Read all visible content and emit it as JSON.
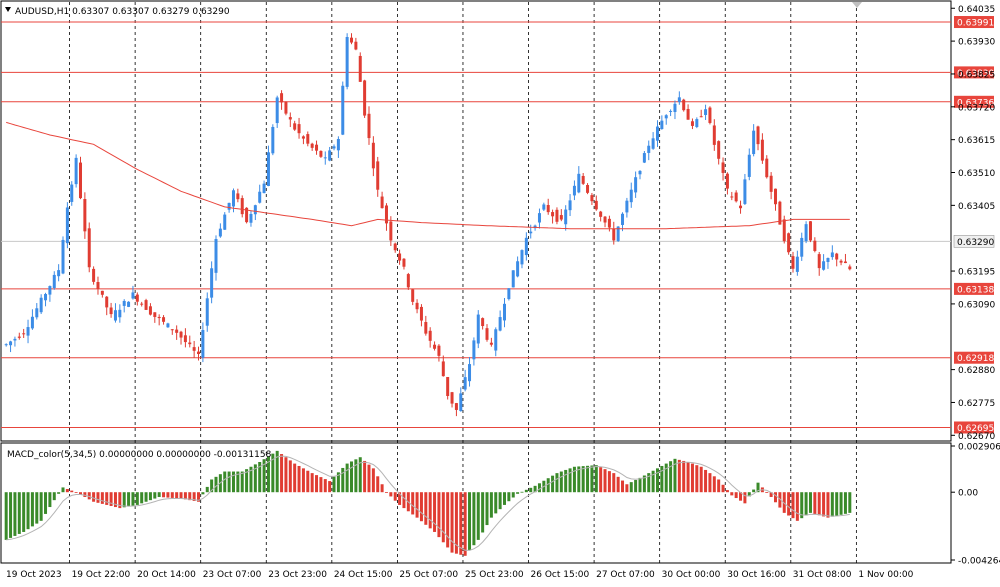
{
  "header": {
    "symbol_line": "AUDUSD,H1  0.63307 0.63307 0.63279 0.63290"
  },
  "macd_header": "MACD_color(5,34,5) 0.00000000 0.00000000 -0.00131158",
  "colors": {
    "bull": "#3c8ce6",
    "bear": "#e03c32",
    "ma": "#e8453c",
    "level": "#e8453c",
    "hist_up": "#3a8a2a",
    "hist_down": "#e03c32",
    "signal": "#b4b4b4"
  },
  "price_ticks": [
    "0.64035",
    "0.63930",
    "0.63825",
    "0.63720",
    "0.63615",
    "0.63510",
    "0.63405",
    "0.63195",
    "0.63090",
    "0.62880",
    "0.62775",
    "0.62670"
  ],
  "macd_ticks": [
    "0.0029061",
    "0.00",
    "-0.0042643"
  ],
  "time_labels": [
    "19 Oct 2023",
    "19 Oct 22:00",
    "20 Oct 14:00",
    "23 Oct 07:00",
    "23 Oct 23:00",
    "24 Oct 15:00",
    "25 Oct 07:00",
    "25 Oct 23:00",
    "26 Oct 15:00",
    "27 Oct 07:00",
    "30 Oct 00:00",
    "30 Oct 16:00",
    "31 Oct 08:00",
    "1 Nov 00:00"
  ],
  "current_price": "0.63290",
  "chart_data": {
    "type": "candlestick",
    "symbol": "AUDUSD",
    "timeframe": "H1",
    "price_range": [
      0.62655,
      0.64055
    ],
    "horizontal_levels": [
      "0.63991",
      "0.63830",
      "0.63736",
      "0.63138",
      "0.62918",
      "0.62695"
    ],
    "close_path": [
      [
        0,
        0.6296
      ],
      [
        4,
        0.63
      ],
      [
        8,
        0.631
      ],
      [
        12,
        0.632
      ],
      [
        14,
        0.634
      ],
      [
        16,
        0.6355
      ],
      [
        19,
        0.632
      ],
      [
        24,
        0.6305
      ],
      [
        29,
        0.6312
      ],
      [
        34,
        0.6305
      ],
      [
        39,
        0.63
      ],
      [
        44,
        0.6292
      ],
      [
        48,
        0.633
      ],
      [
        52,
        0.6345
      ],
      [
        55,
        0.6335
      ],
      [
        59,
        0.6348
      ],
      [
        62,
        0.6375
      ],
      [
        66,
        0.6365
      ],
      [
        69,
        0.636
      ],
      [
        73,
        0.6355
      ],
      [
        76,
        0.6362
      ],
      [
        78,
        0.6395
      ],
      [
        80,
        0.639
      ],
      [
        82,
        0.637
      ],
      [
        85,
        0.6345
      ],
      [
        88,
        0.633
      ],
      [
        91,
        0.632
      ],
      [
        93,
        0.631
      ],
      [
        96,
        0.63
      ],
      [
        99,
        0.6292
      ],
      [
        101,
        0.628
      ],
      [
        103,
        0.6275
      ],
      [
        106,
        0.629
      ],
      [
        108,
        0.6305
      ],
      [
        111,
        0.6295
      ],
      [
        115,
        0.6315
      ],
      [
        119,
        0.633
      ],
      [
        123,
        0.634
      ],
      [
        127,
        0.6335
      ],
      [
        131,
        0.635
      ],
      [
        135,
        0.634
      ],
      [
        139,
        0.633
      ],
      [
        143,
        0.6345
      ],
      [
        147,
        0.636
      ],
      [
        151,
        0.637
      ],
      [
        154,
        0.6375
      ],
      [
        157,
        0.6365
      ],
      [
        160,
        0.6372
      ],
      [
        162,
        0.636
      ],
      [
        165,
        0.6345
      ],
      [
        168,
        0.634
      ],
      [
        171,
        0.6365
      ],
      [
        174,
        0.635
      ],
      [
        177,
        0.6335
      ],
      [
        180,
        0.632
      ],
      [
        183,
        0.6335
      ],
      [
        186,
        0.632
      ],
      [
        189,
        0.6325
      ],
      [
        193,
        0.632
      ]
    ],
    "ma_path": [
      [
        0,
        0.6367
      ],
      [
        10,
        0.6363
      ],
      [
        20,
        0.636
      ],
      [
        30,
        0.6352
      ],
      [
        40,
        0.6345
      ],
      [
        50,
        0.634
      ],
      [
        60,
        0.6338
      ],
      [
        70,
        0.6336
      ],
      [
        79,
        0.6334
      ],
      [
        85,
        0.6336
      ],
      [
        95,
        0.6335
      ],
      [
        110,
        0.6334
      ],
      [
        130,
        0.6333
      ],
      [
        150,
        0.6333
      ],
      [
        170,
        0.6334
      ],
      [
        180,
        0.6336
      ],
      [
        193,
        0.6336
      ]
    ],
    "macd_range": [
      -0.0042643,
      0.0029061
    ],
    "macd_path": [
      [
        0,
        -0.003
      ],
      [
        4,
        -0.0025
      ],
      [
        8,
        -0.0018
      ],
      [
        11,
        -0.0005
      ],
      [
        13,
        0.0003
      ],
      [
        16,
        0.0
      ],
      [
        20,
        -0.0006
      ],
      [
        26,
        -0.001
      ],
      [
        30,
        -0.0008
      ],
      [
        35,
        -0.0003
      ],
      [
        40,
        -0.0004
      ],
      [
        44,
        -0.0006
      ],
      [
        47,
        0.0008
      ],
      [
        50,
        0.0013
      ],
      [
        54,
        0.0013
      ],
      [
        58,
        0.0019
      ],
      [
        62,
        0.0026
      ],
      [
        66,
        0.0018
      ],
      [
        70,
        0.0012
      ],
      [
        74,
        0.0007
      ],
      [
        78,
        0.0018
      ],
      [
        81,
        0.0022
      ],
      [
        84,
        0.0015
      ],
      [
        87,
        0.0
      ],
      [
        90,
        -0.0008
      ],
      [
        94,
        -0.0016
      ],
      [
        98,
        -0.0025
      ],
      [
        102,
        -0.0038
      ],
      [
        105,
        -0.004
      ],
      [
        108,
        -0.003
      ],
      [
        111,
        -0.0016
      ],
      [
        114,
        -0.0008
      ],
      [
        117,
        -0.0001
      ],
      [
        121,
        0.0004
      ],
      [
        126,
        0.0012
      ],
      [
        130,
        0.0016
      ],
      [
        135,
        0.0017
      ],
      [
        139,
        0.0012
      ],
      [
        142,
        0.0005
      ],
      [
        145,
        0.0009
      ],
      [
        149,
        0.0015
      ],
      [
        153,
        0.0021
      ],
      [
        156,
        0.0019
      ],
      [
        159,
        0.0016
      ],
      [
        163,
        0.0008
      ],
      [
        166,
        -0.0002
      ],
      [
        169,
        -0.0007
      ],
      [
        172,
        0.0006
      ],
      [
        175,
        -0.0003
      ],
      [
        178,
        -0.0013
      ],
      [
        181,
        -0.0018
      ],
      [
        184,
        -0.0013
      ],
      [
        188,
        -0.0016
      ],
      [
        193,
        -0.0013
      ]
    ]
  }
}
